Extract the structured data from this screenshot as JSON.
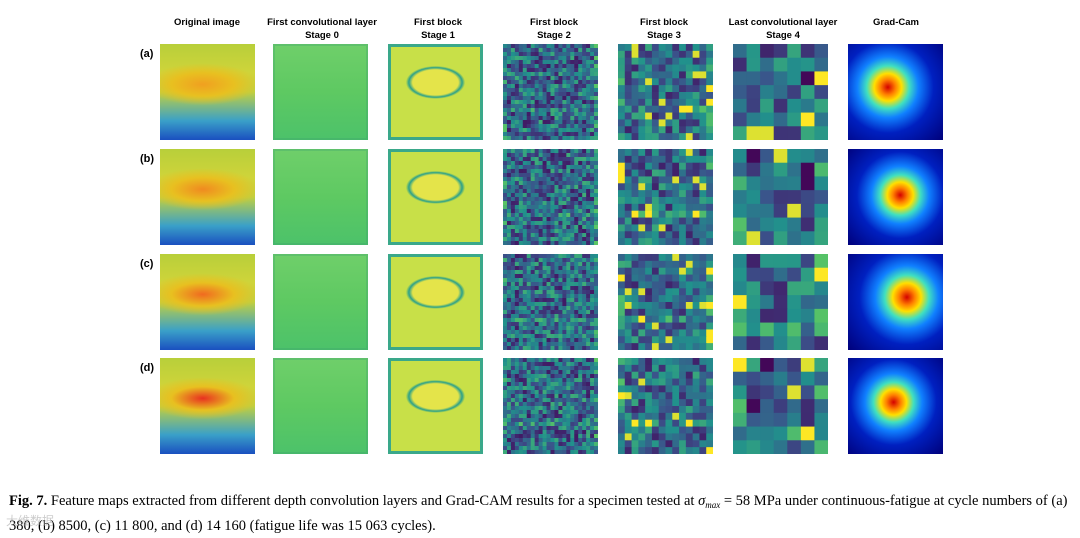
{
  "figure": {
    "columns": [
      {
        "line1": "Original image",
        "line2": ""
      },
      {
        "line1": "First convolutional layer",
        "line2": "Stage 0"
      },
      {
        "line1": "First block",
        "line2": "Stage 1"
      },
      {
        "line1": "First block",
        "line2": "Stage 2"
      },
      {
        "line1": "First block",
        "line2": "Stage 3"
      },
      {
        "line1": "Last convolutional layer",
        "line2": "Stage 4"
      },
      {
        "line1": "Grad-Cam",
        "line2": ""
      }
    ],
    "rows": [
      {
        "label": "(a)"
      },
      {
        "label": "(b)"
      },
      {
        "label": "(c)"
      },
      {
        "label": "(d)"
      }
    ]
  },
  "caption": {
    "label": "Fig. 7.",
    "text_before_sigma": "Feature maps extracted from different depth convolution layers and Grad-CAM results for a specimen tested at",
    "sigma_symbol": "σ",
    "sigma_subscript": "max",
    "text_after_sigma": "= 58 MPa under continuous-fatigue at cycle numbers of (a) 380, (b) 8500, (c) 11 800, and (d) 14 160 (fatigue life was 15 063 cycles)."
  },
  "watermark": "大维数据"
}
